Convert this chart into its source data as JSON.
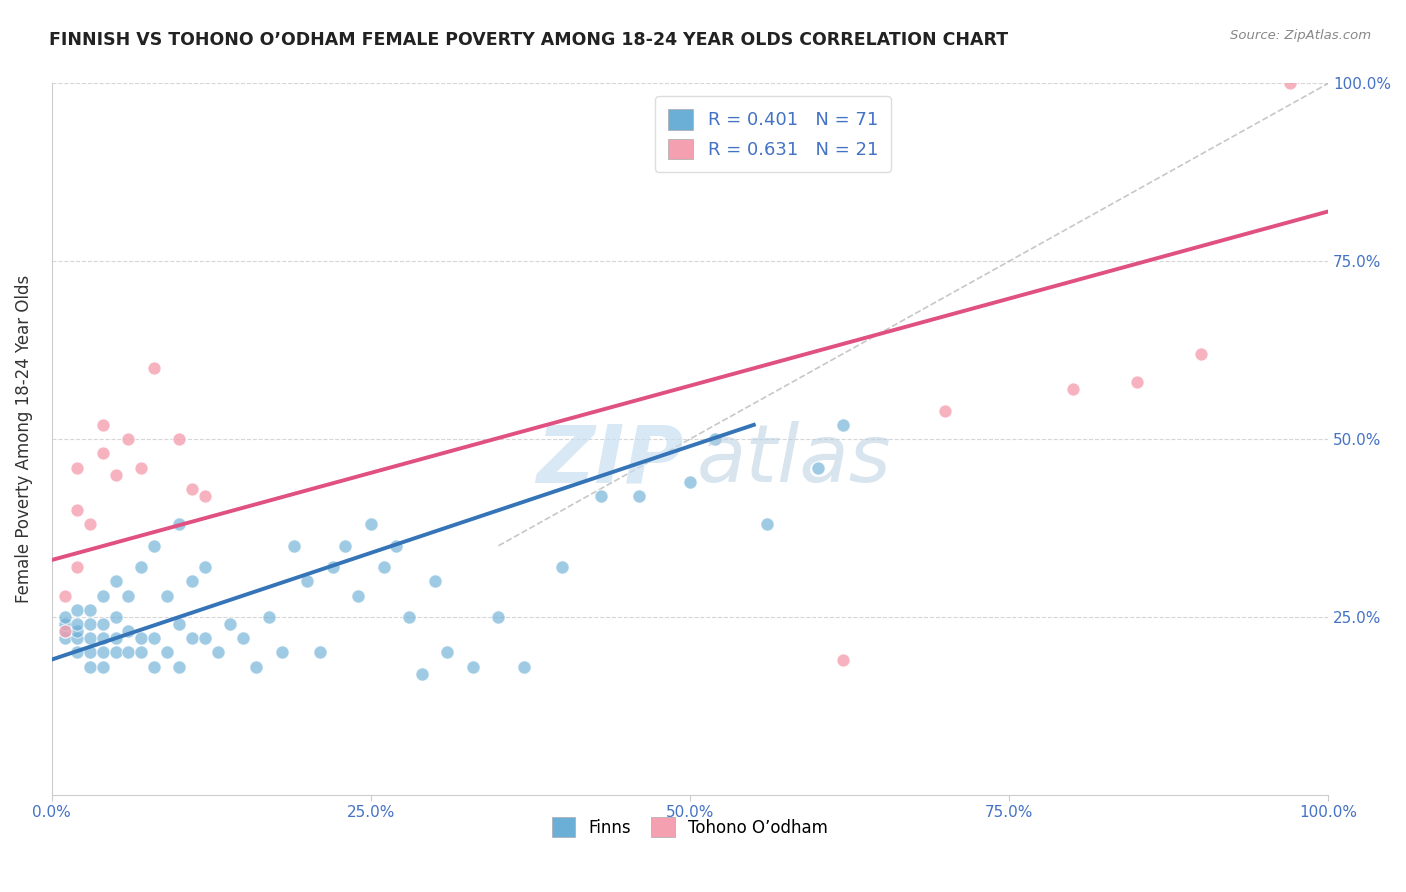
{
  "title": "FINNISH VS TOHONO O’ODHAM FEMALE POVERTY AMONG 18-24 YEAR OLDS CORRELATION CHART",
  "source": "Source: ZipAtlas.com",
  "ylabel": "Female Poverty Among 18-24 Year Olds",
  "xlim": [
    0,
    1.0
  ],
  "ylim": [
    0,
    1.0
  ],
  "xtick_labels": [
    "0.0%",
    "25.0%",
    "50.0%",
    "75.0%",
    "100.0%"
  ],
  "xtick_values": [
    0.0,
    0.25,
    0.5,
    0.75,
    1.0
  ],
  "right_ytick_labels": [
    "25.0%",
    "50.0%",
    "75.0%",
    "100.0%"
  ],
  "right_ytick_values": [
    0.25,
    0.5,
    0.75,
    1.0
  ],
  "finns_color": "#6baed6",
  "tohono_color": "#f4a0b0",
  "finns_R": 0.401,
  "finns_N": 71,
  "tohono_R": 0.631,
  "tohono_N": 21,
  "legend_label_finns": "Finns",
  "legend_label_tohono": "Tohono O’odham",
  "background_color": "#ffffff",
  "finns_x": [
    0.01,
    0.01,
    0.01,
    0.01,
    0.02,
    0.02,
    0.02,
    0.02,
    0.02,
    0.03,
    0.03,
    0.03,
    0.03,
    0.03,
    0.04,
    0.04,
    0.04,
    0.04,
    0.04,
    0.05,
    0.05,
    0.05,
    0.05,
    0.06,
    0.06,
    0.06,
    0.07,
    0.07,
    0.07,
    0.08,
    0.08,
    0.08,
    0.09,
    0.09,
    0.1,
    0.1,
    0.1,
    0.11,
    0.11,
    0.12,
    0.12,
    0.13,
    0.14,
    0.15,
    0.16,
    0.17,
    0.18,
    0.19,
    0.2,
    0.21,
    0.22,
    0.23,
    0.24,
    0.25,
    0.26,
    0.27,
    0.28,
    0.29,
    0.3,
    0.31,
    0.33,
    0.35,
    0.37,
    0.4,
    0.43,
    0.46,
    0.5,
    0.52,
    0.56,
    0.6,
    0.62
  ],
  "finns_y": [
    0.22,
    0.23,
    0.24,
    0.25,
    0.2,
    0.22,
    0.23,
    0.24,
    0.26,
    0.18,
    0.2,
    0.22,
    0.24,
    0.26,
    0.18,
    0.2,
    0.22,
    0.24,
    0.28,
    0.2,
    0.22,
    0.25,
    0.3,
    0.2,
    0.23,
    0.28,
    0.2,
    0.22,
    0.32,
    0.18,
    0.22,
    0.35,
    0.2,
    0.28,
    0.18,
    0.24,
    0.38,
    0.22,
    0.3,
    0.22,
    0.32,
    0.2,
    0.24,
    0.22,
    0.18,
    0.25,
    0.2,
    0.35,
    0.3,
    0.2,
    0.32,
    0.35,
    0.28,
    0.38,
    0.32,
    0.35,
    0.25,
    0.17,
    0.3,
    0.2,
    0.18,
    0.25,
    0.18,
    0.32,
    0.42,
    0.42,
    0.44,
    0.5,
    0.38,
    0.46,
    0.52
  ],
  "tohono_x": [
    0.01,
    0.01,
    0.02,
    0.02,
    0.02,
    0.03,
    0.04,
    0.04,
    0.05,
    0.06,
    0.07,
    0.08,
    0.1,
    0.11,
    0.12,
    0.62,
    0.7,
    0.8,
    0.85,
    0.9,
    0.97
  ],
  "tohono_y": [
    0.23,
    0.28,
    0.32,
    0.4,
    0.46,
    0.38,
    0.48,
    0.52,
    0.45,
    0.5,
    0.46,
    0.6,
    0.5,
    0.43,
    0.42,
    0.19,
    0.54,
    0.57,
    0.58,
    0.62,
    1.0
  ],
  "finns_line_x": [
    0.0,
    0.55
  ],
  "finns_line_y": [
    0.19,
    0.52
  ],
  "tohono_line_x": [
    0.0,
    1.0
  ],
  "tohono_line_y": [
    0.33,
    0.82
  ],
  "dashed_line_x": [
    0.35,
    1.0
  ],
  "dashed_line_y": [
    0.35,
    1.0
  ],
  "watermark_zip": "ZIP",
  "watermark_atlas": "atlas",
  "legend_R_color": "#4472c4",
  "tick_color": "#4472c4",
  "title_color": "#222222",
  "source_color": "#888888",
  "ylabel_color": "#333333"
}
